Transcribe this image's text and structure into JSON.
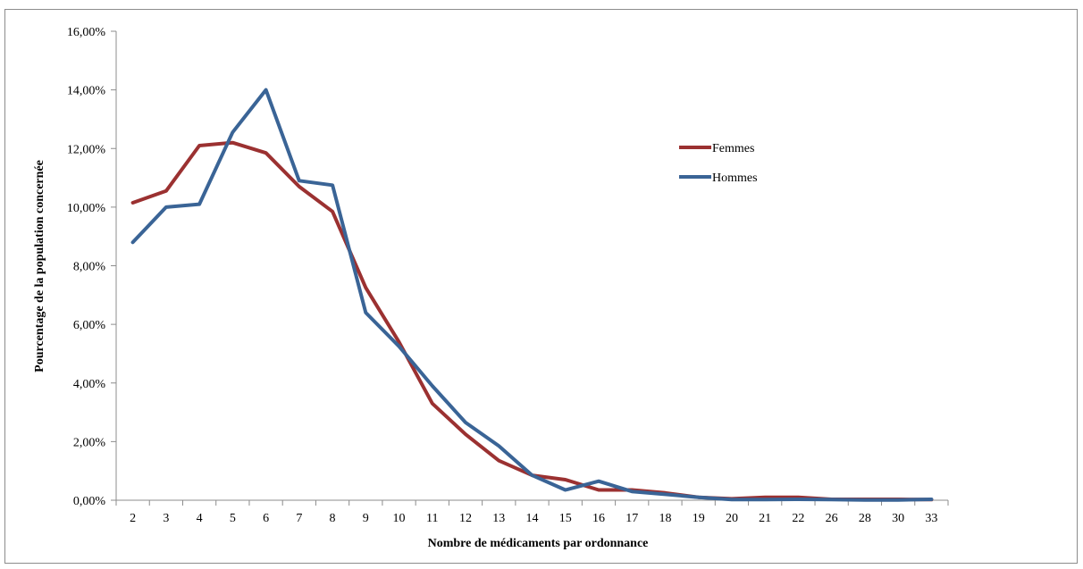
{
  "chart_data": {
    "type": "line",
    "title": "",
    "xlabel": "Nombre de médicaments par ordonnance",
    "ylabel": "Pourcentage de la population concernée",
    "ylim": [
      0,
      16
    ],
    "y_ticks": [
      0,
      2,
      4,
      6,
      8,
      10,
      12,
      14,
      16
    ],
    "y_tick_labels": [
      "0,00%",
      "2,00%",
      "4,00%",
      "6,00%",
      "8,00%",
      "10,00%",
      "12,00%",
      "14,00%",
      "16,00%"
    ],
    "categories": [
      "2",
      "3",
      "4",
      "5",
      "6",
      "7",
      "8",
      "9",
      "10",
      "11",
      "12",
      "13",
      "14",
      "15",
      "16",
      "17",
      "18",
      "19",
      "20",
      "21",
      "22",
      "26",
      "28",
      "30",
      "33"
    ],
    "series": [
      {
        "name": "Femmes",
        "color": "#9b3131",
        "values": [
          10.15,
          10.55,
          12.1,
          12.2,
          11.85,
          10.7,
          9.85,
          7.25,
          5.4,
          3.3,
          2.25,
          1.35,
          0.85,
          0.7,
          0.35,
          0.35,
          0.25,
          0.1,
          0.05,
          0.1,
          0.1,
          0.03,
          0.03,
          0.03,
          0.02
        ]
      },
      {
        "name": "Hommes",
        "color": "#3a6496",
        "values": [
          8.8,
          10.0,
          10.1,
          12.55,
          14.0,
          10.9,
          10.75,
          6.4,
          5.25,
          3.9,
          2.65,
          1.85,
          0.85,
          0.35,
          0.65,
          0.3,
          0.2,
          0.1,
          0.02,
          0.02,
          0.03,
          0.02,
          0.01,
          0.01,
          0.03
        ]
      }
    ],
    "grid": false,
    "legend_position": "right"
  }
}
